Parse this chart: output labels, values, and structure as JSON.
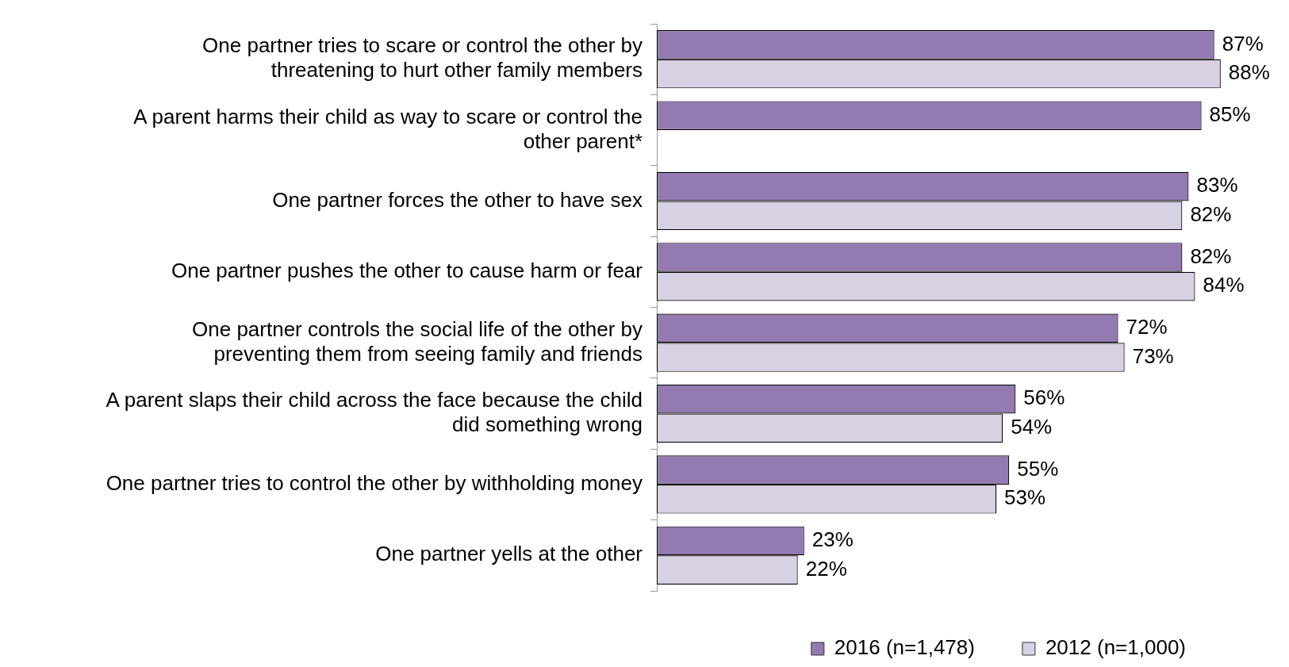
{
  "chart_data": {
    "type": "bar",
    "orientation": "horizontal",
    "categories": [
      "One partner tries to scare or control the other by threatening to hurt other family members",
      "A parent harms their child as way to scare or control the other parent*",
      "One partner forces the other to have sex",
      "One partner pushes the other to cause harm or fear",
      "One partner controls the social life of the other by preventing them from seeing family and friends",
      "A parent slaps their child across the face because the child did something wrong",
      "One partner tries to control the other by withholding money",
      "One partner yells at the other"
    ],
    "series": [
      {
        "name": "2016 (n=1,478)",
        "color": "#937ab0",
        "values": [
          87,
          85,
          83,
          82,
          72,
          56,
          55,
          23
        ],
        "value_labels": [
          "87%",
          "85%",
          "83%",
          "82%",
          "72%",
          "56%",
          "55%",
          "23%"
        ]
      },
      {
        "name": "2012 (n=1,000)",
        "color": "#d8d0e3",
        "values": [
          88,
          null,
          82,
          84,
          73,
          54,
          53,
          22
        ],
        "value_labels": [
          "88%",
          null,
          "82%",
          "84%",
          "73%",
          "54%",
          "53%",
          "22%"
        ]
      }
    ],
    "tick_labels": "y",
    "legend": "bottom right",
    "grid": false
  }
}
